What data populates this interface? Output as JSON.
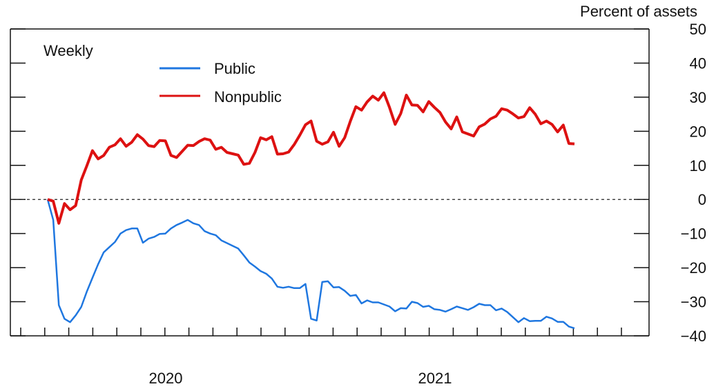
{
  "chart_data": {
    "type": "line",
    "frequency_label": "Weekly",
    "y_axis": {
      "unit_label": "Percent of assets",
      "ylim": [
        -40,
        50
      ],
      "ticks": [
        50,
        40,
        30,
        20,
        10,
        0,
        -10,
        -20,
        -30,
        -40
      ],
      "tick_labels": [
        "50",
        "40",
        "30",
        "20",
        "10",
        "0",
        "−10",
        "−20",
        "−30",
        "−40"
      ],
      "side": "right"
    },
    "x_axis": {
      "year_labels": [
        "2020",
        "2021"
      ],
      "minor_ticks": "monthly"
    },
    "zero_line": "dashed",
    "legend_position": "upper-left",
    "series": [
      {
        "name": "Public",
        "color": "#1f77e0",
        "values": [
          0,
          -6,
          -31,
          -35,
          -36,
          -34,
          -31.5,
          -27,
          -23,
          -19,
          -15.5,
          -14,
          -12.5,
          -10,
          -9,
          -8.5,
          -8.5,
          -12.7,
          -11.5,
          -11,
          -10.1,
          -10,
          -8.5,
          -7.5,
          -6.8,
          -6,
          -7,
          -7.5,
          -9.3,
          -10,
          -10.5,
          -12,
          -12.8,
          -13.6,
          -14.4,
          -16.4,
          -18.5,
          -19.7,
          -21,
          -21.8,
          -23.2,
          -25.6,
          -25.9,
          -25.6,
          -26,
          -26,
          -24.8,
          -35,
          -35.5,
          -24.2,
          -24,
          -25.8,
          -25.7,
          -26.8,
          -28.3,
          -28,
          -30.5,
          -29.6,
          -30.2,
          -30.2,
          -30.8,
          -31.4,
          -32.8,
          -31.9,
          -32,
          -30,
          -30.4,
          -31.5,
          -31.2,
          -32.2,
          -32.4,
          -32.9,
          -32.2,
          -31.4,
          -31.9,
          -32.4,
          -31.6,
          -30.6,
          -31,
          -31,
          -32.5,
          -32,
          -33,
          -34.5,
          -36,
          -34.8,
          -35.7,
          -35.6,
          -35.6,
          -34.4,
          -34.9,
          -35.9,
          -35.9,
          -37.3,
          -37.8
        ]
      },
      {
        "name": "Nonpublic",
        "color": "#dd1111",
        "values": [
          0,
          -0.5,
          -7,
          -1.2,
          -3,
          -1.8,
          5.7,
          9.9,
          14.3,
          11.9,
          12.9,
          15.3,
          16,
          17.8,
          15.6,
          16.8,
          19,
          17.7,
          15.8,
          15.5,
          17.3,
          17.2,
          12.9,
          12.3,
          14.1,
          15.9,
          15.8,
          17,
          17.8,
          17.4,
          14.7,
          15.3,
          13.8,
          13.4,
          13,
          10.3,
          10.6,
          13.8,
          18.1,
          17.5,
          18.4,
          13.3,
          13.4,
          13.9,
          16.1,
          18.9,
          21.9,
          23,
          17.1,
          16.2,
          16.9,
          19.7,
          15.6,
          18.1,
          22.9,
          27.2,
          26.2,
          28.6,
          30.3,
          29.1,
          31.3,
          27,
          22,
          25.2,
          30.6,
          27.7,
          27.6,
          25.7,
          28.7,
          27,
          25.5,
          22.7,
          20.7,
          24.2,
          19.8,
          19.2,
          18.6,
          21.3,
          22.1,
          23.6,
          24.4,
          26.6,
          26.2,
          25.1,
          23.9,
          24.3,
          26.9,
          25,
          22.2,
          23,
          22,
          19.8,
          21.8,
          16.4,
          16.3
        ]
      }
    ]
  }
}
